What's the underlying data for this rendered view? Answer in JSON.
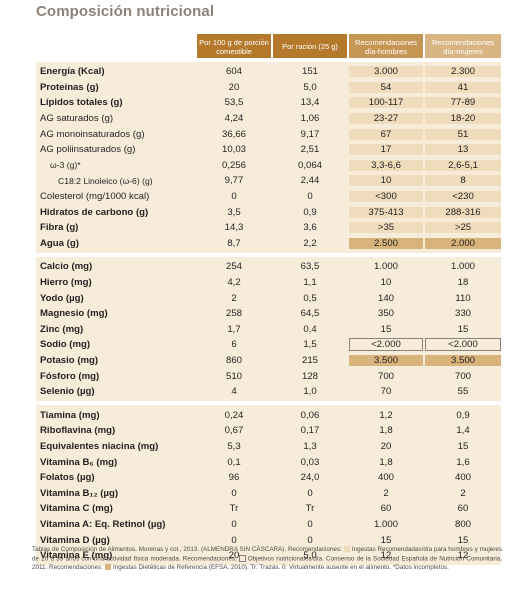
{
  "title": "Composición nutricional",
  "headers": {
    "per100": "Por 100 g de porción comestible",
    "perServing": "Por ración (25 g)",
    "menRec": "Recomendaciones día-hombres",
    "womenRec": "Recomendaciones día-mujeres"
  },
  "groups": [
    {
      "rows": [
        {
          "label": "Energía (Kcal)",
          "bold": true,
          "v1": "604",
          "v2": "151",
          "v3": "3.000",
          "v4": "2.300",
          "hl": "light"
        },
        {
          "label": "Proteínas (g)",
          "bold": true,
          "v1": "20",
          "v2": "5,0",
          "v3": "54",
          "v4": "41",
          "hl": "light"
        },
        {
          "label": "Lípidos totales (g)",
          "bold": true,
          "v1": "53,5",
          "v2": "13,4",
          "v3": "100-117",
          "v4": "77-89",
          "hl": "light"
        },
        {
          "label": "AG saturados (g)",
          "bold": false,
          "v1": "4,24",
          "v2": "1,06",
          "v3": "23-27",
          "v4": "18-20",
          "hl": "light"
        },
        {
          "label": "AG monoinsaturados (g)",
          "bold": false,
          "v1": "36,66",
          "v2": "9,17",
          "v3": "67",
          "v4": "51",
          "hl": "light"
        },
        {
          "label": "AG poliinsaturados (g)",
          "bold": false,
          "v1": "10,03",
          "v2": "2,51",
          "v3": "17",
          "v4": "13",
          "hl": "light"
        },
        {
          "label": "ω-3 (g)*",
          "indent": 1,
          "bold": false,
          "v1": "0,256",
          "v2": "0,064",
          "v3": "3,3-6,6",
          "v4": "2,6-5,1",
          "hl": "light"
        },
        {
          "label": "C18:2 Linoleico (ω-6) (g)",
          "indent": 2,
          "bold": false,
          "v1": "9,77",
          "v2": "2,44",
          "v3": "10",
          "v4": "8",
          "hl": "light"
        },
        {
          "label": "Colesterol (mg/1000 kcal)",
          "bold": false,
          "v1": "0",
          "v2": "0",
          "v3": "<300",
          "v4": "<230",
          "hl": "light"
        },
        {
          "label": "Hidratos de carbono (g)",
          "bold": true,
          "v1": "3,5",
          "v2": "0,9",
          "v3": "375-413",
          "v4": "288-316",
          "hl": "light"
        },
        {
          "label": "Fibra (g)",
          "bold": true,
          "v1": "14,3",
          "v2": "3,6",
          "v3": ">35",
          "v4": ">25",
          "hl": "light"
        },
        {
          "label": "Agua (g)",
          "bold": true,
          "v1": "8,7",
          "v2": "2,2",
          "v3": "2.500",
          "v4": "2.000",
          "hl": "strong"
        }
      ]
    },
    {
      "rows": [
        {
          "label": "Calcio (mg)",
          "bold": true,
          "v1": "254",
          "v2": "63,5",
          "v3": "1.000",
          "v4": "1.000",
          "hl": "none"
        },
        {
          "label": "Hierro (mg)",
          "bold": true,
          "v1": "4,2",
          "v2": "1,1",
          "v3": "10",
          "v4": "18",
          "hl": "none"
        },
        {
          "label": "Yodo (µg)",
          "bold": true,
          "v1": "2",
          "v2": "0,5",
          "v3": "140",
          "v4": "110",
          "hl": "none"
        },
        {
          "label": "Magnesio (mg)",
          "bold": true,
          "v1": "258",
          "v2": "64,5",
          "v3": "350",
          "v4": "330",
          "hl": "none"
        },
        {
          "label": "Zinc (mg)",
          "bold": true,
          "v1": "1,7",
          "v2": "0,4",
          "v3": "15",
          "v4": "15",
          "hl": "none"
        },
        {
          "label": "Sodio (mg)",
          "bold": true,
          "v1": "6",
          "v2": "1,5",
          "v3": "<2.000",
          "v4": "<2.000",
          "hl": "outline"
        },
        {
          "label": "Potasio (mg)",
          "bold": true,
          "v1": "860",
          "v2": "215",
          "v3": "3.500",
          "v4": "3.500",
          "hl": "strong"
        },
        {
          "label": "Fósforo (mg)",
          "bold": true,
          "v1": "510",
          "v2": "128",
          "v3": "700",
          "v4": "700",
          "hl": "none"
        },
        {
          "label": "Selenio (µg)",
          "bold": true,
          "v1": "4",
          "v2": "1,0",
          "v3": "70",
          "v4": "55",
          "hl": "none"
        }
      ]
    },
    {
      "rows": [
        {
          "label": "Tiamina (mg)",
          "bold": true,
          "v1": "0,24",
          "v2": "0,06",
          "v3": "1,2",
          "v4": "0,9",
          "hl": "none"
        },
        {
          "label": "Riboflavina (mg)",
          "bold": true,
          "v1": "0,67",
          "v2": "0,17",
          "v3": "1,8",
          "v4": "1,4",
          "hl": "none"
        },
        {
          "label": "Equivalentes niacina (mg)",
          "bold": true,
          "v1": "5,3",
          "v2": "1,3",
          "v3": "20",
          "v4": "15",
          "hl": "none"
        },
        {
          "label": "Vitamina B₆ (mg)",
          "bold": true,
          "v1": "0,1",
          "v2": "0,03",
          "v3": "1,8",
          "v4": "1,6",
          "hl": "none"
        },
        {
          "label": "Folatos (µg)",
          "bold": true,
          "v1": "96",
          "v2": "24,0",
          "v3": "400",
          "v4": "400",
          "hl": "none"
        },
        {
          "label": "Vitamina B₁₂ (µg)",
          "bold": true,
          "v1": "0",
          "v2": "0",
          "v3": "2",
          "v4": "2",
          "hl": "none"
        },
        {
          "label": "Vitamina C (mg)",
          "bold": true,
          "v1": "Tr",
          "v2": "Tr",
          "v3": "60",
          "v4": "60",
          "hl": "none"
        },
        {
          "label": "Vitamina A: Eq. Retinol (µg)",
          "bold": true,
          "v1": "0",
          "v2": "0",
          "v3": "1.000",
          "v4": "800",
          "hl": "none"
        },
        {
          "label": "Vitamina D (µg)",
          "bold": true,
          "v1": "0",
          "v2": "0",
          "v3": "15",
          "v4": "15",
          "hl": "none"
        },
        {
          "label": "Vitamina E (mg)",
          "bold": true,
          "v1": "20",
          "v2": "5,0",
          "v3": "12",
          "v4": "12",
          "hl": "none"
        }
      ]
    }
  ],
  "footnote": {
    "p1": "Tablas de Composición de Alimentos. Moreiras y col., 2013. (ALMENDRA SIN CÁSCARA). Recomendaciones:",
    "p2": "Ingestas Recomendadas/día para hombres y mujeres de 20 a 39 años con una actividad física moderada. Recomendaciones:",
    "p3": "Objetivos nutricionales/día. Consenso de la Sociedad Española de Nutrición Comunitaria, 2011. Recomendaciones:",
    "p4": "Ingestas Dietéticas de Referencia (EFSA, 2010). Tr: Trazas. 0: Virtualmente ausente en el alimento. *Datos incompletos."
  },
  "colors": {
    "headerDark": "#b5792b",
    "headerMid": "#c69654",
    "headerLight": "#d9b584",
    "rowBg": "#f6ecd9",
    "highlightLight": "#eedcbc",
    "highlightStrong": "#d8b37c",
    "title": "#8c8279"
  }
}
